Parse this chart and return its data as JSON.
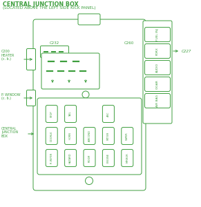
{
  "title": "CENTRAL JUNCTION BOX",
  "subtitle": "(LOCATED ABOVE THE LEFT SIDE KICK PANEL)",
  "bg_color": "#ffffff",
  "fg_color": "#3d9e3d",
  "right_fuses": [
    "FUEL INJ",
    "FDRX",
    "AUDIO",
    "CIGAR",
    "AIR BAG"
  ],
  "row1_fuses": [
    "STOP",
    "TAIL",
    "",
    "ASC",
    ""
  ],
  "row2_fuses": [
    "DOORLK",
    "HORN",
    "AIRCOND",
    "METER",
    "WIPER"
  ],
  "row3_fuses": [
    "R WIPER",
    "HAZARD",
    "ROOM",
    "ENGINE",
    "MIRROR"
  ]
}
